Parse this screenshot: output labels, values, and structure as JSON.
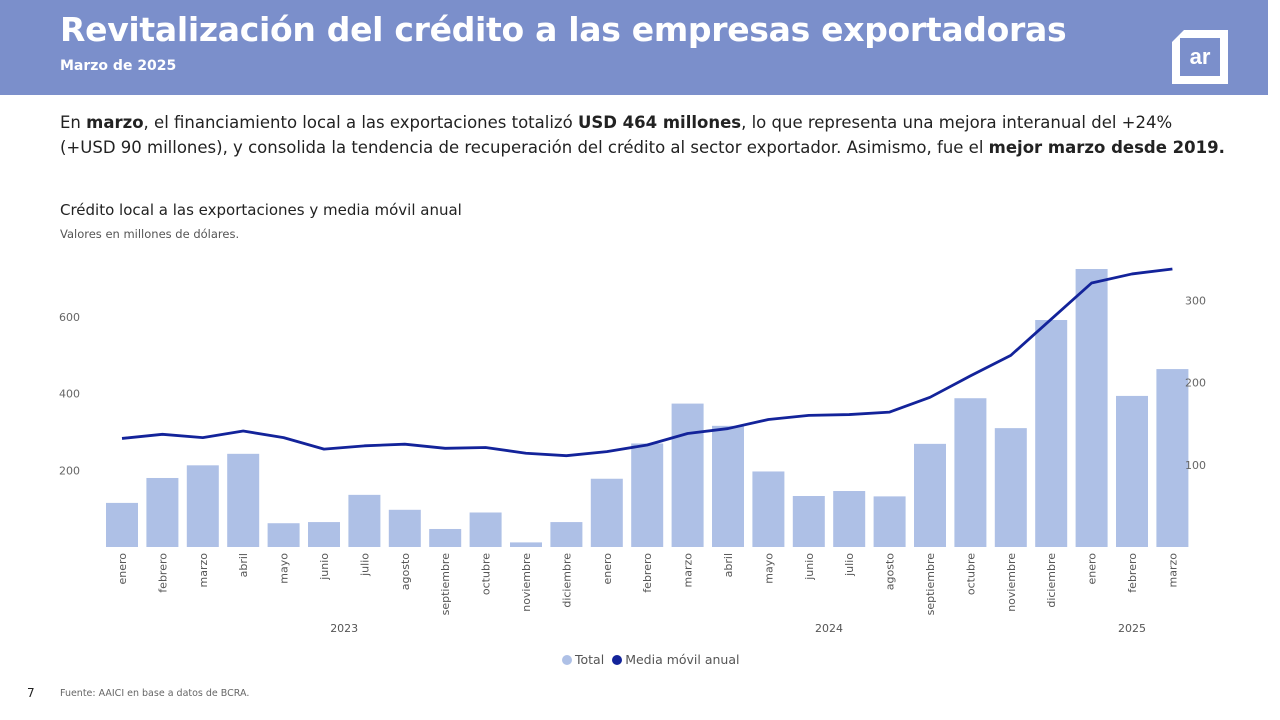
{
  "header": {
    "title": "Revitalización del crédito a las empresas exportadoras",
    "subtitle": "Marzo de 2025",
    "logo_text": "ar"
  },
  "intro": {
    "p1": "En ",
    "b1": "marzo",
    "p2": ", el financiamiento local a las exportaciones totalizó ",
    "b2": "USD 464 millones",
    "p3": ", lo que representa una mejora interanual del +24% (+USD 90 millones), y consolida la tendencia de recuperación del crédito al sector exportador. Asimismo, fue el ",
    "b3": "mejor marzo desde 2019."
  },
  "chart_data": {
    "type": "bar",
    "title": "Crédito local a las exportaciones y media móvil anual",
    "subtitle": "Valores en millones de dólares.",
    "categories": [
      "enero",
      "febrero",
      "marzo",
      "abril",
      "mayo",
      "junio",
      "julio",
      "agosto",
      "septiembre",
      "octubre",
      "noviembre",
      "diciembre",
      "enero",
      "febrero",
      "marzo",
      "abril",
      "mayo",
      "junio",
      "julio",
      "agosto",
      "septiembre",
      "octubre",
      "noviembre",
      "diciembre",
      "enero",
      "febrero",
      "marzo"
    ],
    "year_groups": [
      {
        "label": "2023",
        "start": 0,
        "end": 11
      },
      {
        "label": "2024",
        "start": 12,
        "end": 23
      },
      {
        "label": "2025",
        "start": 24,
        "end": 26
      }
    ],
    "series": [
      {
        "name": "Total",
        "axis": "left",
        "type": "bar",
        "color": "#aec0e6",
        "values": [
          115,
          180,
          213,
          243,
          62,
          65,
          136,
          97,
          47,
          90,
          12,
          65,
          178,
          270,
          374,
          316,
          197,
          133,
          146,
          132,
          269,
          388,
          310,
          592,
          725,
          394,
          464
        ]
      },
      {
        "name": "Media móvil anual",
        "axis": "right",
        "type": "line",
        "color": "#13239a",
        "values": [
          132,
          137,
          133,
          141,
          133,
          119,
          123,
          125,
          120,
          121,
          114,
          111,
          116,
          124,
          138,
          144,
          155,
          160,
          161,
          164,
          182,
          208,
          233,
          277,
          321,
          332,
          338
        ]
      }
    ],
    "ylim_left": [
      0,
      725
    ],
    "yticks_left": [
      200,
      400,
      600
    ],
    "ylim_right": [
      0,
      338
    ],
    "yticks_right": [
      100,
      200,
      300
    ],
    "grid": false,
    "legend_position": "bottom"
  },
  "legend": {
    "total": "Total",
    "media": "Media móvil anual"
  },
  "footer": {
    "page": "7",
    "source": "Fuente: AAICI en base a datos de BCRA."
  }
}
